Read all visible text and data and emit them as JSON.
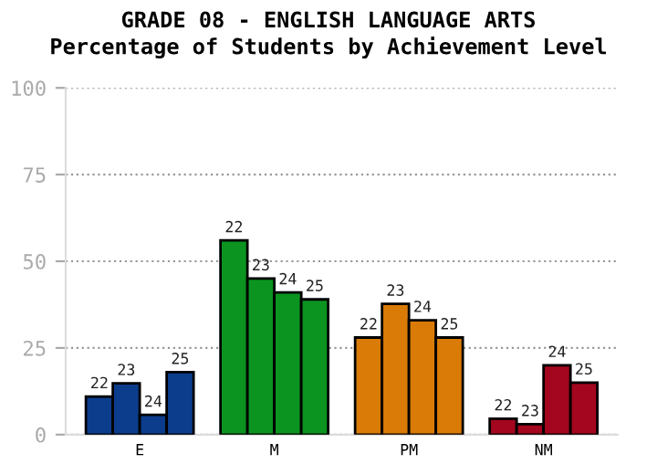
{
  "chart_data": {
    "type": "bar",
    "title": "GRADE 08 - ENGLISH LANGUAGE ARTS",
    "subtitle": "Percentage of Students by Achievement Level",
    "categories": [
      "E",
      "M",
      "PM",
      "NM"
    ],
    "series": [
      {
        "name": "22",
        "colors": [
          "#0b3d8c",
          "#0b9420",
          "#d97b06",
          "#a3061e"
        ],
        "values": [
          11,
          56,
          28,
          4.6
        ]
      },
      {
        "name": "23",
        "colors": [
          "#0b3d8c",
          "#0b9420",
          "#d97b06",
          "#a3061e"
        ],
        "values": [
          14.8,
          45,
          37.7,
          3
        ]
      },
      {
        "name": "24",
        "colors": [
          "#0b3d8c",
          "#0b9420",
          "#d97b06",
          "#a3061e"
        ],
        "values": [
          5.7,
          41,
          33,
          20
        ]
      },
      {
        "name": "25",
        "colors": [
          "#0b3d8c",
          "#0b9420",
          "#d97b06",
          "#a3061e"
        ],
        "values": [
          18,
          39,
          28,
          15
        ]
      }
    ],
    "ylim": [
      0,
      100
    ],
    "yticks": [
      0,
      25,
      50,
      75,
      100
    ],
    "grid": "y",
    "legend": false
  }
}
